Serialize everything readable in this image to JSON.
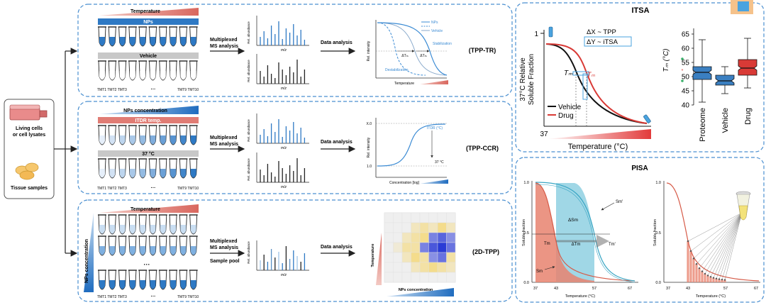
{
  "source_box": {
    "label_line1": "Living cells",
    "label_line2": "or cell lysates",
    "tissue_label": "Tissue samples"
  },
  "panel_tr": {
    "temp_bar": "Temperature",
    "np_bar": "NPs",
    "vehicle_bar": "Vehicle",
    "tmt_left": "TMT1 TMT2 TMT3",
    "tmt_dots": "···",
    "tmt_right": "TMT9 TMT10",
    "ms_line1": "Multiplexed",
    "ms_line2": "MS analysis",
    "rel_abundance": "Rel. abundance",
    "mz": "m/z",
    "data_analysis": "Data analysis",
    "plot": {
      "ylabel": "Rel. intensity",
      "xlabel": "Temperature",
      "legend_nps": "NPs",
      "legend_vehicle": "Vehicle",
      "stabilization": "Stabilization",
      "destabilization": "Destabilization",
      "dtm": "ΔTₘ"
    },
    "tag": "(TPP-TR)"
  },
  "panel_ccr": {
    "conc_bar": "NPs concentration",
    "itdr_bar": "ITDR temp.",
    "temp37_bar": "37 °C",
    "tmt_left": "TMT1 TMT2 TMT3",
    "tmt_dots": "···",
    "tmt_right": "TMT9 TMT10",
    "ms_line1": "Multiplexed",
    "ms_line2": "MS analysis",
    "rel_abundance": "Rel. abundance",
    "mz": "m/z",
    "data_analysis": "Data analysis",
    "plot": {
      "ylabel": "Rel. intensity",
      "xlabel": "Concentration [log]",
      "x0": "X.0",
      "y1": "1.0",
      "itdr": "ITDR (°C)",
      "c37": "37 °C"
    },
    "tag": "(TPP-CCR)"
  },
  "panel_2d": {
    "temp_bar": "Temperature",
    "conc_side": "NPs concentration",
    "tmt_left": "TMT1 TMT2 TMT3",
    "tmt_dots": "···",
    "tmt_right": "TMT9 TMT10",
    "ms_line1": "Multiplexed",
    "ms_line2": "MS analysis",
    "pool": "Sample pool",
    "rel_abundance": "Rel. abundance",
    "mz": "m/z",
    "data_analysis": "Data analysis",
    "heat_ylabel": "Temperature",
    "heat_xlabel": "NPs concentration",
    "tag": "(2D-TPP)"
  },
  "itsa": {
    "title": "ITSA",
    "eq1": "ΔX ~ TPP",
    "eq2": "ΔY ~ iTSA",
    "ylabel_line1": "37°C Relative",
    "ylabel_line2": "Soluble Fraction",
    "y_one": "1",
    "x_37": "37",
    "xlabel": "Temperature (°C)",
    "tm": "Tₘ",
    "legend_vehicle": "Vehicle",
    "legend_drug": "Drug",
    "colors": {
      "vehicle": "#111111",
      "drug": "#d93a36"
    }
  },
  "box": {
    "ylabel": "Tₘ (°C)",
    "ticks": [
      "65",
      "60",
      "55",
      "50",
      "45",
      "40"
    ],
    "categories": [
      "Proteome",
      "Vehicle",
      "Drug"
    ]
  },
  "pisa": {
    "title": "PISA",
    "left": {
      "ylabel": "Soluble fraction",
      "xlabel": "Temperature (°C)",
      "yticks": [
        "1.0",
        "0.5",
        "0.0"
      ],
      "xticks": [
        "37",
        "43",
        "57",
        "67"
      ],
      "sm_prime": "Sm'",
      "dsm": "ΔSm",
      "tm": "Tm",
      "dtm": "ΔTm",
      "tm_prime": "Tm'",
      "sm": "Sm"
    },
    "right": {
      "ylabel": "Soluble fraction",
      "xlabel": "Temperature (°C)",
      "yticks": [
        "1.0",
        "0.5",
        "0.0"
      ],
      "xticks": [
        "37",
        "43",
        "57",
        "67"
      ]
    }
  },
  "chart_data": [
    {
      "type": "box",
      "ylabel": "Tₘ (°C)",
      "ylim": [
        40,
        67
      ],
      "categories": [
        "Proteome",
        "Vehicle",
        "Drug"
      ],
      "series": [
        {
          "name": "Proteome",
          "whisker_low": 41,
          "q1": 49,
          "median": 51.5,
          "q3": 53.5,
          "whisker_high": 63,
          "color": "#3a7fc1"
        },
        {
          "name": "Vehicle",
          "whisker_low": 44,
          "q1": 47,
          "median": 48.5,
          "q3": 50.5,
          "whisker_high": 53.5,
          "color": "#3a7fc1"
        },
        {
          "name": "Drug",
          "whisker_low": 46,
          "q1": 50.5,
          "median": 53,
          "q3": 56,
          "whisker_high": 63.5,
          "color": "#d93a36"
        }
      ]
    }
  ],
  "colors": {
    "panel_border": "#4a8fd0",
    "blue": "#2e79c4",
    "salmon": "#e07c74",
    "teal": "#7cc6d8",
    "grey_bar": "#c8c8c8"
  }
}
